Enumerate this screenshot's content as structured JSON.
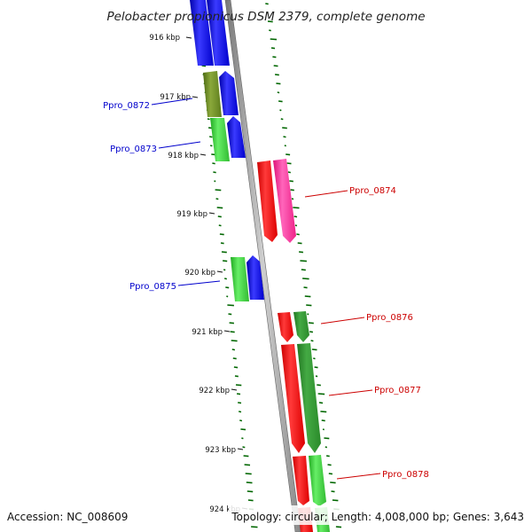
{
  "title": "Pelobacter propionicus DSM 2379, complete genome",
  "footer": {
    "accession": "Accession: NC_008609",
    "summary": "Topology: circular; Length: 4,008,000 bp; Genes: 3,643"
  },
  "ticks": [
    {
      "label": "916 kbp"
    },
    {
      "label": "917 kbp"
    },
    {
      "label": "918 kbp"
    },
    {
      "label": "919 kbp"
    },
    {
      "label": "920 kbp"
    },
    {
      "label": "921 kbp"
    },
    {
      "label": "922 kbp"
    },
    {
      "label": "923 kbp"
    },
    {
      "label": "924 kbp"
    }
  ],
  "gene_labels": [
    {
      "name": "Ppro_0872",
      "strand": "minus",
      "color": "#0000cc"
    },
    {
      "name": "Ppro_0873",
      "strand": "minus",
      "color": "#0000cc"
    },
    {
      "name": "Ppro_0874",
      "strand": "plus",
      "color": "#cc0000"
    },
    {
      "name": "Ppro_0875",
      "strand": "minus",
      "color": "#0000cc"
    },
    {
      "name": "Ppro_0876",
      "strand": "plus",
      "color": "#cc0000"
    },
    {
      "name": "Ppro_0877",
      "strand": "plus",
      "color": "#cc0000"
    },
    {
      "name": "Ppro_0878",
      "strand": "plus",
      "color": "#cc0000"
    }
  ],
  "colors": {
    "minus_strand": "#0000ff",
    "plus_strand": "#ff0000",
    "cog_green": "#33cc33",
    "cog_dark_green": "#339933",
    "cog_olive": "#6b8e23",
    "cog_pink": "#ff3399",
    "backbone": "#888888",
    "gc_dots": "#006600"
  }
}
